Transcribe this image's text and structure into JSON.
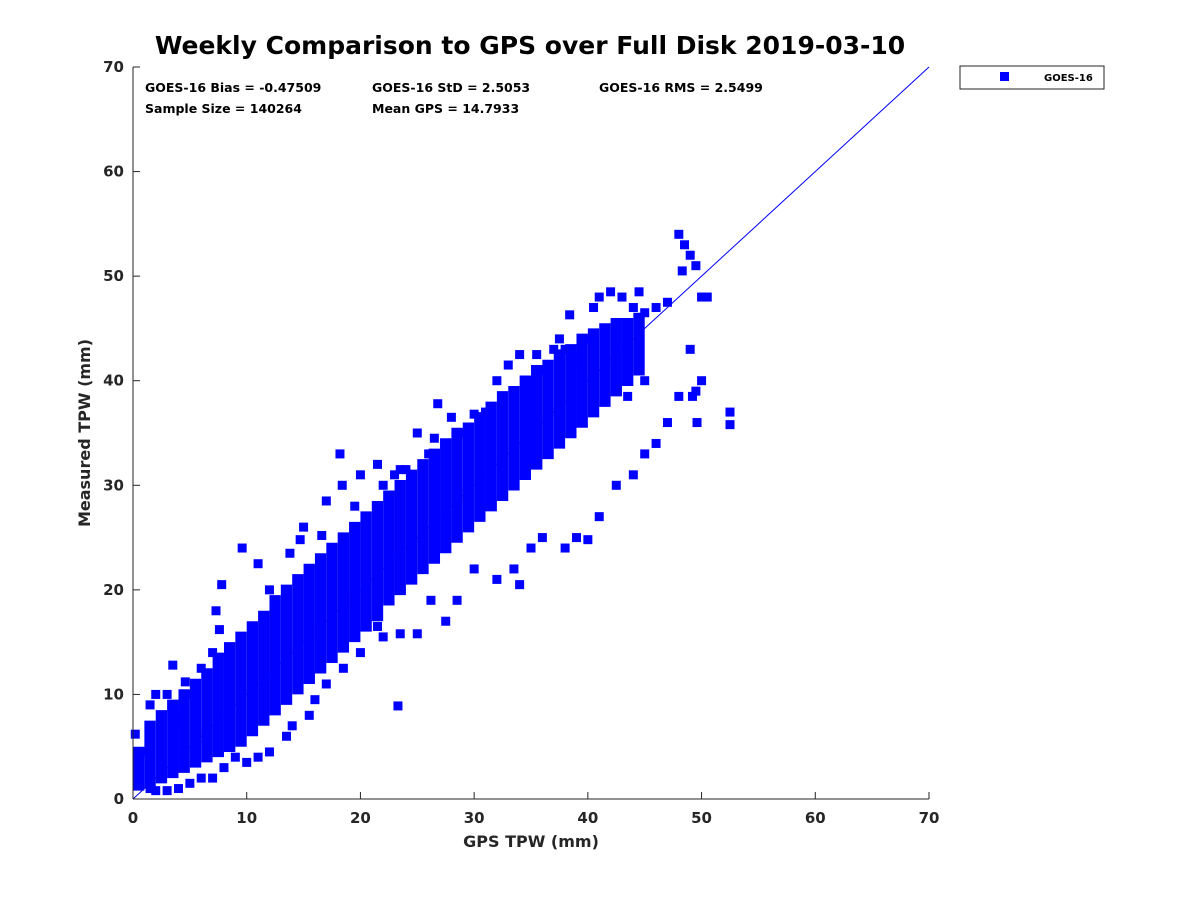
{
  "chart_data": {
    "type": "scatter",
    "title": "Weekly Comparison to GPS over Full Disk 2019-03-10",
    "xlabel": "GPS TPW (mm)",
    "ylabel": "Measured TPW (mm)",
    "xlim": [
      0,
      70
    ],
    "ylim": [
      0,
      70
    ],
    "xticks": [
      "0",
      "10",
      "20",
      "30",
      "40",
      "50",
      "60",
      "70"
    ],
    "yticks": [
      "0",
      "10",
      "20",
      "30",
      "40",
      "50",
      "60",
      "70"
    ],
    "grid": false,
    "legend": {
      "placement": "outside-top-right",
      "entries": [
        "GOES-16"
      ]
    },
    "series_color": "#0000ff",
    "reference_line": {
      "from": [
        0,
        0
      ],
      "to": [
        70,
        70
      ],
      "color": "#0000ff"
    },
    "stats": {
      "bias": "GOES-16 Bias = -0.47509",
      "std": "GOES-16 StD = 2.5053",
      "rms": "GOES-16 RMS = 2.5499",
      "sample_size": "Sample Size = 140264",
      "mean_gps": "Mean GPS = 14.7933"
    },
    "series": [
      {
        "name": "GOES-16",
        "points": [
          [
            0.2,
            6.2
          ],
          [
            0.4,
            3.8
          ],
          [
            1.0,
            4.5
          ],
          [
            1.5,
            9.0
          ],
          [
            2.0,
            10.0
          ],
          [
            3.0,
            10.0
          ],
          [
            3.5,
            12.8
          ],
          [
            4.0,
            7.5
          ],
          [
            4.6,
            11.2
          ],
          [
            5.0,
            10.0
          ],
          [
            6.0,
            12.5
          ],
          [
            7.0,
            14.0
          ],
          [
            7.6,
            16.2
          ],
          [
            7.3,
            18.0
          ],
          [
            7.8,
            20.5
          ],
          [
            9.6,
            24.0
          ],
          [
            11.0,
            22.5
          ],
          [
            12.0,
            20.0
          ],
          [
            13.8,
            23.5
          ],
          [
            14.7,
            24.8
          ],
          [
            15.0,
            26.0
          ],
          [
            16.6,
            25.2
          ],
          [
            17.0,
            28.5
          ],
          [
            18.4,
            30.0
          ],
          [
            18.2,
            33.0
          ],
          [
            19.5,
            28.0
          ],
          [
            20.0,
            31.0
          ],
          [
            21.5,
            32.0
          ],
          [
            22.0,
            30.0
          ],
          [
            23.0,
            31.0
          ],
          [
            23.5,
            31.5
          ],
          [
            24.0,
            31.5
          ],
          [
            25.0,
            35.0
          ],
          [
            26.0,
            33.0
          ],
          [
            26.5,
            34.5
          ],
          [
            26.8,
            37.8
          ],
          [
            28.0,
            36.5
          ],
          [
            29.0,
            35.0
          ],
          [
            30.0,
            36.8
          ],
          [
            31.0,
            37.0
          ],
          [
            32.0,
            40.0
          ],
          [
            33.0,
            41.5
          ],
          [
            34.0,
            42.5
          ],
          [
            35.0,
            40.0
          ],
          [
            35.5,
            42.5
          ],
          [
            36.0,
            41.0
          ],
          [
            37.0,
            43.0
          ],
          [
            37.5,
            44.0
          ],
          [
            38.0,
            43.0
          ],
          [
            38.4,
            46.3
          ],
          [
            39.0,
            42.0
          ],
          [
            40.0,
            44.0
          ],
          [
            40.5,
            47.0
          ],
          [
            41.0,
            48.0
          ],
          [
            42.0,
            48.5
          ],
          [
            43.0,
            48.0
          ],
          [
            44.0,
            47.0
          ],
          [
            44.5,
            48.5
          ],
          [
            45.0,
            46.5
          ],
          [
            46.0,
            47.0
          ],
          [
            47.0,
            47.5
          ],
          [
            48.0,
            54.0
          ],
          [
            48.5,
            53.0
          ],
          [
            49.0,
            52.0
          ],
          [
            49.5,
            51.0
          ],
          [
            50.0,
            48.0
          ],
          [
            50.5,
            48.0
          ],
          [
            48.3,
            50.5
          ],
          [
            49.0,
            43.0
          ],
          [
            49.5,
            39.0
          ],
          [
            49.6,
            36.0
          ],
          [
            49.2,
            38.5
          ],
          [
            48.0,
            38.5
          ],
          [
            50.0,
            40.0
          ],
          [
            47.0,
            36.0
          ],
          [
            46.0,
            34.0
          ],
          [
            45.0,
            33.0
          ],
          [
            44.0,
            31.0
          ],
          [
            42.5,
            30.0
          ],
          [
            41.0,
            27.0
          ],
          [
            39.0,
            25.0
          ],
          [
            40.0,
            24.8
          ],
          [
            38.0,
            24.0
          ],
          [
            36.0,
            25.0
          ],
          [
            35.0,
            24.0
          ],
          [
            34.0,
            20.5
          ],
          [
            33.5,
            22.0
          ],
          [
            32.0,
            21.0
          ],
          [
            30.0,
            22.0
          ],
          [
            28.5,
            19.0
          ],
          [
            27.5,
            17.0
          ],
          [
            26.2,
            19.0
          ],
          [
            25.0,
            15.8
          ],
          [
            23.5,
            15.8
          ],
          [
            22.0,
            15.5
          ],
          [
            21.5,
            16.5
          ],
          [
            20.0,
            14.0
          ],
          [
            18.5,
            12.5
          ],
          [
            17.0,
            11.0
          ],
          [
            16.0,
            9.5
          ],
          [
            15.5,
            8.0
          ],
          [
            14.0,
            7.0
          ],
          [
            13.5,
            6.0
          ],
          [
            12.0,
            4.5
          ],
          [
            11.0,
            4.0
          ],
          [
            10.0,
            3.5
          ],
          [
            9.0,
            4.0
          ],
          [
            8.0,
            3.0
          ],
          [
            7.0,
            2.0
          ],
          [
            6.0,
            2.0
          ],
          [
            5.0,
            1.5
          ],
          [
            4.0,
            1.0
          ],
          [
            3.0,
            0.8
          ],
          [
            2.0,
            0.8
          ],
          [
            1.5,
            1.0
          ],
          [
            23.3,
            8.9
          ],
          [
            52.5,
            37.0
          ],
          [
            52.5,
            35.8
          ],
          [
            45.0,
            40.0
          ],
          [
            43.5,
            38.5
          ]
        ],
        "bands": [
          [
            1.0,
            0.8,
            5.0
          ],
          [
            2.0,
            1.0,
            7.5
          ],
          [
            3.0,
            1.5,
            8.5
          ],
          [
            4.0,
            2.0,
            9.5
          ],
          [
            5.0,
            2.5,
            10.5
          ],
          [
            6.0,
            3.0,
            11.5
          ],
          [
            7.0,
            3.5,
            12.5
          ],
          [
            8.0,
            4.0,
            14.0
          ],
          [
            9.0,
            4.5,
            15.0
          ],
          [
            10.0,
            5.0,
            16.0
          ],
          [
            11.0,
            6.0,
            17.0
          ],
          [
            12.0,
            7.0,
            18.0
          ],
          [
            13.0,
            8.0,
            19.5
          ],
          [
            14.0,
            9.0,
            20.5
          ],
          [
            15.0,
            10.0,
            21.5
          ],
          [
            16.0,
            11.0,
            22.5
          ],
          [
            17.0,
            12.0,
            23.5
          ],
          [
            18.0,
            13.0,
            24.5
          ],
          [
            19.0,
            14.0,
            25.5
          ],
          [
            20.0,
            15.0,
            26.5
          ],
          [
            21.0,
            16.0,
            27.5
          ],
          [
            22.0,
            17.0,
            28.5
          ],
          [
            23.0,
            18.5,
            29.5
          ],
          [
            24.0,
            19.5,
            30.5
          ],
          [
            25.0,
            20.5,
            31.5
          ],
          [
            26.0,
            21.5,
            32.5
          ],
          [
            27.0,
            22.5,
            33.5
          ],
          [
            28.0,
            23.5,
            34.5
          ],
          [
            29.0,
            24.5,
            35.5
          ],
          [
            30.0,
            25.5,
            36.0
          ],
          [
            31.0,
            26.5,
            37.0
          ],
          [
            32.0,
            27.5,
            38.0
          ],
          [
            33.0,
            28.5,
            39.0
          ],
          [
            34.0,
            29.5,
            39.5
          ],
          [
            35.0,
            30.5,
            40.5
          ],
          [
            36.0,
            31.5,
            41.5
          ],
          [
            37.0,
            32.5,
            42.0
          ],
          [
            38.0,
            33.5,
            43.0
          ],
          [
            39.0,
            34.5,
            43.5
          ],
          [
            40.0,
            35.5,
            44.5
          ],
          [
            41.0,
            36.5,
            45.0
          ],
          [
            42.0,
            37.5,
            45.5
          ],
          [
            43.0,
            38.5,
            46.0
          ],
          [
            44.0,
            39.5,
            46.0
          ],
          [
            45.0,
            40.5,
            46.5
          ]
        ]
      }
    ]
  }
}
